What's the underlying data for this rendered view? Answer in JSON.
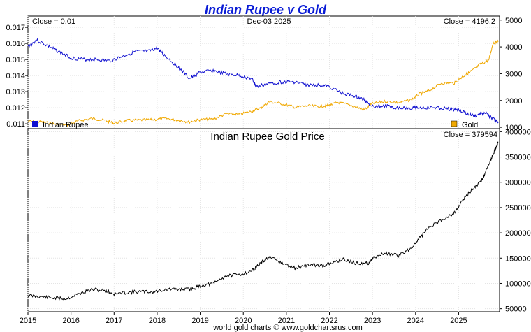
{
  "chart_data": [
    {
      "type": "line",
      "title": "Indian Rupee v Gold",
      "date_label": "Dec-03  2025",
      "left_close_label": "Close = 0.01",
      "right_close_label": "Close = 4196.2",
      "left_axis": {
        "ticks": [
          "0.017",
          "0.016",
          "0.015",
          "0.014",
          "0.013",
          "0.012",
          "0.011"
        ],
        "range": [
          0.0107,
          0.0177
        ]
      },
      "right_axis": {
        "ticks": [
          "5000",
          "4000",
          "3000",
          "2000",
          "1000"
        ],
        "range": [
          950,
          5150
        ]
      },
      "series": [
        {
          "name": "Indian Rupee",
          "axis": "left",
          "color": "#1010d0",
          "x": [
            2015.0,
            2015.2,
            2015.5,
            2015.7,
            2016.0,
            2016.3,
            2016.6,
            2016.9,
            2017.2,
            2017.5,
            2017.8,
            2018.0,
            2018.2,
            2018.5,
            2018.75,
            2019.0,
            2019.3,
            2019.6,
            2019.9,
            2020.2,
            2020.3,
            2020.6,
            2020.9,
            2021.2,
            2021.5,
            2021.8,
            2022.0,
            2022.3,
            2022.6,
            2022.8,
            2023.0,
            2023.3,
            2023.6,
            2023.9,
            2024.2,
            2024.5,
            2024.8,
            2025.0,
            2025.2,
            2025.4,
            2025.6,
            2025.8,
            2025.92
          ],
          "values": [
            0.0158,
            0.0162,
            0.0158,
            0.0155,
            0.0151,
            0.015,
            0.015,
            0.0149,
            0.0152,
            0.0155,
            0.0155,
            0.0157,
            0.0152,
            0.0145,
            0.0138,
            0.0142,
            0.0143,
            0.0141,
            0.014,
            0.0138,
            0.0133,
            0.0135,
            0.0136,
            0.0136,
            0.0134,
            0.0134,
            0.0133,
            0.0129,
            0.0127,
            0.0125,
            0.0121,
            0.0121,
            0.012,
            0.012,
            0.012,
            0.012,
            0.0119,
            0.0119,
            0.0116,
            0.0115,
            0.0117,
            0.0113,
            0.0111
          ]
        },
        {
          "name": "Gold",
          "axis": "right",
          "color": "#f0a800",
          "x": [
            2015.0,
            2015.3,
            2015.6,
            2015.9,
            2016.2,
            2016.5,
            2016.8,
            2017.0,
            2017.3,
            2017.6,
            2017.9,
            2018.2,
            2018.5,
            2018.75,
            2019.0,
            2019.3,
            2019.6,
            2019.9,
            2020.2,
            2020.4,
            2020.6,
            2020.9,
            2021.2,
            2021.5,
            2021.8,
            2022.0,
            2022.2,
            2022.5,
            2022.8,
            2023.0,
            2023.3,
            2023.6,
            2023.9,
            2024.1,
            2024.3,
            2024.6,
            2024.9,
            2025.1,
            2025.3,
            2025.5,
            2025.7,
            2025.8,
            2025.92
          ],
          "values": [
            1220,
            1200,
            1130,
            1080,
            1250,
            1330,
            1250,
            1150,
            1250,
            1270,
            1280,
            1330,
            1260,
            1200,
            1290,
            1300,
            1500,
            1480,
            1600,
            1720,
            1950,
            1880,
            1750,
            1800,
            1780,
            1820,
            1930,
            1820,
            1650,
            1880,
            1970,
            1920,
            2030,
            2250,
            2350,
            2650,
            2650,
            2900,
            3100,
            3350,
            3500,
            4150,
            4196
          ]
        }
      ],
      "legend": [
        "Indian Rupee",
        "Gold"
      ]
    },
    {
      "type": "line",
      "title": "Indian Rupee Gold Price",
      "close_label": "Close = 379594",
      "y_axis": {
        "ticks": [
          "400000",
          "350000",
          "300000",
          "250000",
          "200000",
          "150000",
          "100000",
          "50000"
        ],
        "range": [
          44000,
          406000
        ]
      },
      "x_axis": {
        "ticks": [
          "2015",
          "2016",
          "2017",
          "2018",
          "2019",
          "2020",
          "2021",
          "2022",
          "2023",
          "2024",
          "2025"
        ],
        "range": [
          2015.0,
          2025.95
        ]
      },
      "series": [
        {
          "name": "Indian Rupee Gold Price",
          "color": "#000000",
          "x": [
            2015.0,
            2015.3,
            2015.6,
            2015.9,
            2016.2,
            2016.5,
            2016.8,
            2017.0,
            2017.3,
            2017.6,
            2017.9,
            2018.2,
            2018.5,
            2018.8,
            2019.0,
            2019.3,
            2019.6,
            2019.9,
            2020.2,
            2020.4,
            2020.6,
            2020.9,
            2021.2,
            2021.5,
            2021.8,
            2022.0,
            2022.3,
            2022.6,
            2022.9,
            2023.0,
            2023.3,
            2023.6,
            2023.9,
            2024.1,
            2024.3,
            2024.6,
            2024.9,
            2025.1,
            2025.3,
            2025.5,
            2025.6,
            2025.75,
            2025.85,
            2025.92
          ],
          "values": [
            76000,
            74000,
            71000,
            70000,
            80000,
            88000,
            86000,
            79000,
            82000,
            84000,
            83000,
            88000,
            88000,
            89000,
            95000,
            100000,
            115000,
            117000,
            125000,
            140000,
            152000,
            140000,
            130000,
            137000,
            135000,
            138000,
            148000,
            140000,
            140000,
            150000,
            160000,
            155000,
            170000,
            190000,
            210000,
            225000,
            240000,
            265000,
            285000,
            300000,
            315000,
            345000,
            365000,
            379594
          ]
        }
      ]
    }
  ],
  "footer": "world gold charts © www.goldchartsrus.com"
}
